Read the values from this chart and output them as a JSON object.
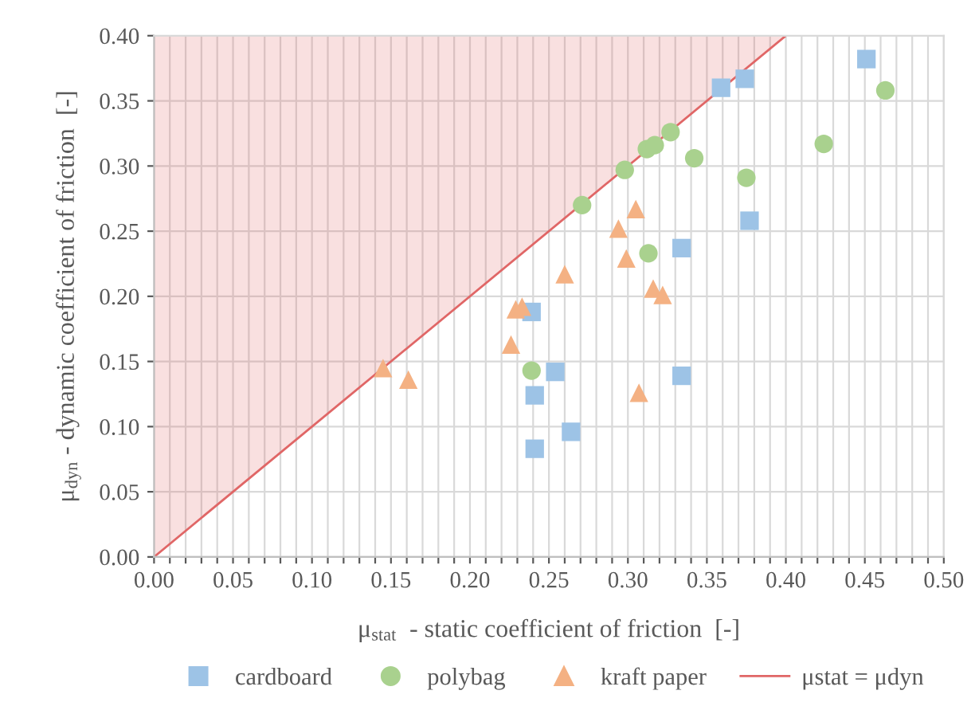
{
  "chart_data": {
    "type": "scatter",
    "xlabel": "μ$_{stat}$  - static coefficient of friction  [-]",
    "ylabel": "μ$_{dyn}$ - dynamic coefficient of friction  [-]",
    "xlim": [
      0,
      0.5
    ],
    "ylim": [
      0,
      0.4
    ],
    "xticks": [
      {
        "value": 0,
        "label": "0.00"
      },
      {
        "value": 0.01,
        "label": null
      },
      {
        "value": 0.02,
        "label": null
      },
      {
        "value": 0.03,
        "label": null
      },
      {
        "value": 0.04,
        "label": null
      },
      {
        "value": 0.05,
        "label": "0.05"
      },
      {
        "value": 0.06,
        "label": null
      },
      {
        "value": 0.07,
        "label": null
      },
      {
        "value": 0.08,
        "label": null
      },
      {
        "value": 0.09,
        "label": null
      },
      {
        "value": 0.1,
        "label": "0.10"
      },
      {
        "value": 0.11,
        "label": null
      },
      {
        "value": 0.12,
        "label": null
      },
      {
        "value": 0.13,
        "label": null
      },
      {
        "value": 0.14,
        "label": null
      },
      {
        "value": 0.15,
        "label": "0.15"
      },
      {
        "value": 0.16,
        "label": null
      },
      {
        "value": 0.17,
        "label": null
      },
      {
        "value": 0.18,
        "label": null
      },
      {
        "value": 0.19,
        "label": null
      },
      {
        "value": 0.2,
        "label": "0.20"
      },
      {
        "value": 0.21,
        "label": null
      },
      {
        "value": 0.22,
        "label": null
      },
      {
        "value": 0.23,
        "label": null
      },
      {
        "value": 0.24,
        "label": null
      },
      {
        "value": 0.25,
        "label": "0.25"
      },
      {
        "value": 0.26,
        "label": null
      },
      {
        "value": 0.27,
        "label": null
      },
      {
        "value": 0.28,
        "label": null
      },
      {
        "value": 0.29,
        "label": null
      },
      {
        "value": 0.3,
        "label": "0.30"
      },
      {
        "value": 0.31,
        "label": null
      },
      {
        "value": 0.32,
        "label": null
      },
      {
        "value": 0.33,
        "label": null
      },
      {
        "value": 0.34,
        "label": null
      },
      {
        "value": 0.35,
        "label": "0.35"
      },
      {
        "value": 0.36,
        "label": null
      },
      {
        "value": 0.37,
        "label": null
      },
      {
        "value": 0.38,
        "label": null
      },
      {
        "value": 0.39,
        "label": null
      },
      {
        "value": 0.4,
        "label": "0.40"
      },
      {
        "value": 0.41,
        "label": null
      },
      {
        "value": 0.42,
        "label": null
      },
      {
        "value": 0.43,
        "label": null
      },
      {
        "value": 0.44,
        "label": null
      },
      {
        "value": 0.45,
        "label": "0.45"
      },
      {
        "value": 0.46,
        "label": null
      },
      {
        "value": 0.47,
        "label": null
      },
      {
        "value": 0.48,
        "label": null
      },
      {
        "value": 0.49,
        "label": null
      },
      {
        "value": 0.5,
        "label": "0.50"
      }
    ],
    "yticks": [
      {
        "value": 0,
        "label": "0.00"
      },
      {
        "value": 0.05,
        "label": "0.05"
      },
      {
        "value": 0.1,
        "label": "0.10"
      },
      {
        "value": 0.15,
        "label": "0.15"
      },
      {
        "value": 0.2,
        "label": "0.20"
      },
      {
        "value": 0.25,
        "label": "0.25"
      },
      {
        "value": 0.3,
        "label": "0.30"
      },
      {
        "value": 0.35,
        "label": "0.35"
      },
      {
        "value": 0.4,
        "label": "0.40"
      }
    ],
    "grid": true,
    "legend": "bottom",
    "series": [
      {
        "name": "μstat = μdyn",
        "type": "line",
        "color": "#e06666",
        "marker": "none",
        "line_style": "solid",
        "x": [
          0,
          0.4
        ],
        "values": [
          0,
          0.4
        ],
        "lower": [
          0,
          0.4
        ],
        "upper": [
          0.4,
          0.4
        ]
      },
      {
        "name": "cardboard",
        "color": "#9dc3e6",
        "marker": "square",
        "x": [
          0.241,
          0.241,
          0.264,
          0.254,
          0.239,
          0.334,
          0.334,
          0.377,
          0.359,
          0.374,
          0.451
        ],
        "values": [
          0.083,
          0.124,
          0.096,
          0.142,
          0.188,
          0.139,
          0.237,
          0.258,
          0.36,
          0.367,
          0.382
        ]
      },
      {
        "name": "polybag",
        "color": "#a9d18e",
        "marker": "circle",
        "x": [
          0.239,
          0.313,
          0.271,
          0.298,
          0.312,
          0.317,
          0.327,
          0.342,
          0.375,
          0.424,
          0.463
        ],
        "values": [
          0.143,
          0.233,
          0.27,
          0.297,
          0.313,
          0.316,
          0.326,
          0.306,
          0.291,
          0.317,
          0.358
        ]
      },
      {
        "name": "kraft paper",
        "color": "#f4b183",
        "marker": "triangle",
        "x": [
          0.145,
          0.161,
          0.226,
          0.229,
          0.233,
          0.26,
          0.294,
          0.299,
          0.305,
          0.307,
          0.316,
          0.322
        ],
        "values": [
          0.145,
          0.136,
          0.163,
          0.19,
          0.192,
          0.217,
          0.252,
          0.229,
          0.267,
          0.126,
          0.206,
          0.201
        ]
      }
    ]
  }
}
